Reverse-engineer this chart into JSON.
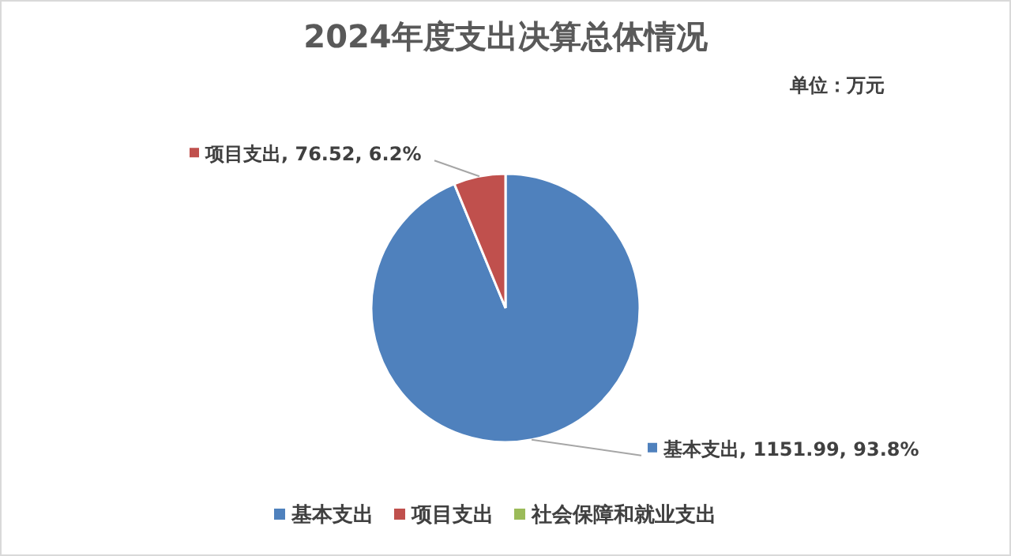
{
  "chart_data": {
    "type": "pie",
    "title": "2024年度支出决算总体情况",
    "subtitle": "单位：万元",
    "categories": [
      "基本支出",
      "项目支出",
      "社会保障和就业支出"
    ],
    "values": [
      1151.99,
      76.52,
      0
    ],
    "colors": [
      "#4f81bd",
      "#c0504d",
      "#9bbb59"
    ],
    "value_labels": [
      ", 1151.99, 93.8%",
      ", 76.52, 6.2%",
      null
    ],
    "legend": "bottom"
  }
}
